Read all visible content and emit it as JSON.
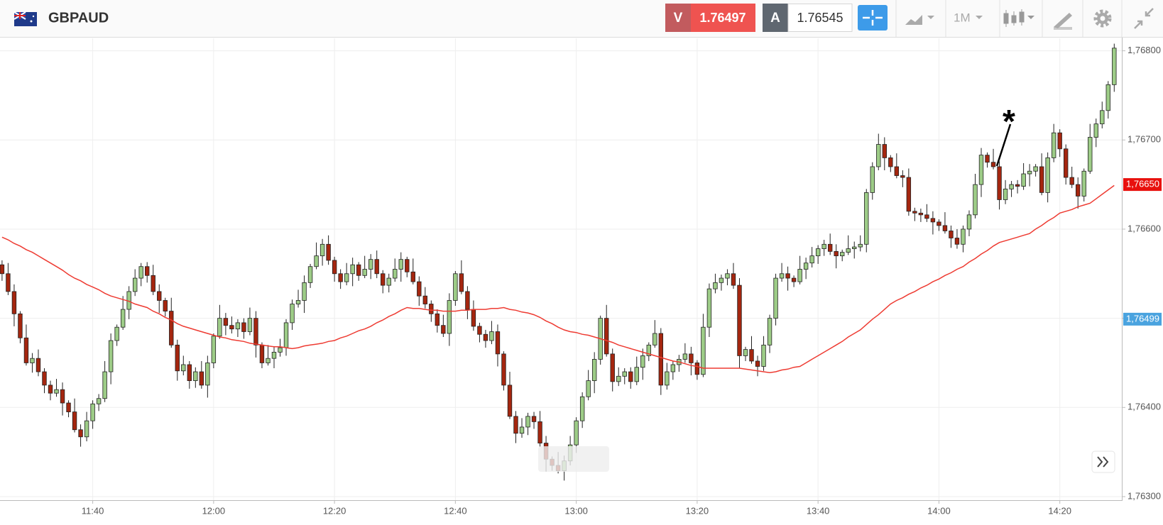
{
  "header": {
    "symbol": "GBPAUD",
    "sell_label": "V",
    "sell_price": "1.76497",
    "buy_label": "A",
    "buy_price": "1.76545",
    "timeframe": "1M"
  },
  "chart_data": {
    "type": "candlestick",
    "categories": [
      null,
      null,
      null,
      null,
      null,
      null,
      null,
      null,
      null,
      null,
      null,
      null,
      null,
      null,
      null,
      "11:40",
      null,
      null,
      null,
      null,
      null,
      null,
      null,
      null,
      null,
      null,
      null,
      null,
      null,
      null,
      null,
      null,
      null,
      null,
      null,
      "12:00",
      null,
      null,
      null,
      null,
      null,
      null,
      null,
      null,
      null,
      null,
      null,
      null,
      null,
      null,
      null,
      null,
      null,
      null,
      null,
      "12:20",
      null,
      null,
      null,
      null,
      null,
      null,
      null,
      null,
      null,
      null,
      null,
      null,
      null,
      null,
      null,
      null,
      null,
      null,
      null,
      "12:40",
      null,
      null,
      null,
      null,
      null,
      null,
      null,
      null,
      null,
      null,
      null,
      null,
      null,
      null,
      null,
      null,
      null,
      null,
      null,
      "13:00",
      null,
      null,
      null,
      null,
      null,
      null,
      null,
      null,
      null,
      null,
      null,
      null,
      null,
      null,
      null,
      null,
      null,
      null,
      null,
      "13:20",
      null,
      null,
      null,
      null,
      null,
      null,
      null,
      null,
      null,
      null,
      null,
      null,
      null,
      null,
      null,
      null,
      null,
      null,
      null,
      "13:40",
      null,
      null,
      null,
      null,
      null,
      null,
      null,
      null,
      null,
      null,
      null,
      null,
      null,
      null,
      null,
      null,
      null,
      null,
      null,
      "14:00",
      null,
      null,
      null,
      null,
      null,
      null,
      null,
      null,
      null,
      null,
      null,
      null,
      null,
      null,
      null,
      null,
      null,
      null,
      null,
      "14:20",
      null,
      null,
      null,
      null,
      null,
      null,
      null,
      null,
      null
    ],
    "open": [
      1.7656,
      1.7655,
      1.7653,
      1.76505,
      1.76478,
      1.7645,
      1.76455,
      1.7644,
      1.76425,
      1.76416,
      1.7642,
      1.76405,
      1.76395,
      1.76375,
      1.76367,
      1.76385,
      1.76404,
      1.7641,
      1.7644,
      1.76475,
      1.7649,
      1.7651,
      1.7653,
      1.76545,
      1.76558,
      1.76548,
      1.7653,
      1.7652,
      1.76508,
      1.7647,
      1.76441,
      1.76448,
      1.7643,
      1.7644,
      1.76425,
      1.7645,
      1.7648,
      1.765,
      1.76492,
      1.76488,
      1.76495,
      1.76485,
      1.765,
      1.7647,
      1.7645,
      1.76455,
      1.76462,
      1.76467,
      1.76495,
      1.76516,
      1.7652,
      1.7654,
      1.76558,
      1.7657,
      1.76583,
      1.76565,
      1.7655,
      1.76541,
      1.7655,
      1.7656,
      1.76548,
      1.76555,
      1.76566,
      1.7655,
      1.76537,
      1.76545,
      1.76555,
      1.76566,
      1.76552,
      1.76541,
      1.76525,
      1.76516,
      1.76505,
      1.76492,
      1.76483,
      1.7652,
      1.7655,
      1.7653,
      1.7651,
      1.76491,
      1.76482,
      1.76475,
      1.76485,
      1.7646,
      1.76425,
      1.7639,
      1.76371,
      1.76378,
      1.7639,
      1.76384,
      1.7636,
      1.76342,
      1.76335,
      1.76329,
      1.7634,
      1.76358,
      1.76385,
      1.76412,
      1.7643,
      1.76454,
      1.765,
      1.7646,
      1.76429,
      1.76435,
      1.7644,
      1.76429,
      1.76445,
      1.76458,
      1.7647,
      1.76483,
      1.76425,
      1.7644,
      1.76448,
      1.76454,
      1.7646,
      1.7645,
      1.76437,
      1.7649,
      1.76533,
      1.7654,
      1.76545,
      1.7655,
      1.76537,
      1.76458,
      1.76465,
      1.76452,
      1.76446,
      1.7647,
      1.765,
      1.76545,
      1.7655,
      1.76545,
      1.76541,
      1.76555,
      1.76562,
      1.7657,
      1.76578,
      1.76583,
      1.76575,
      1.7657,
      1.76574,
      1.76578,
      1.7658,
      1.76583,
      1.76641,
      1.7667,
      1.76695,
      1.7668,
      1.7667,
      1.7666,
      1.76658,
      1.7662,
      1.76618,
      1.76616,
      1.76612,
      1.76608,
      1.76604,
      1.76598,
      1.7659,
      1.76583,
      1.766,
      1.76616,
      1.7665,
      1.76683,
      1.76675,
      1.7667,
      1.76633,
      1.76645,
      1.7665,
      1.76648,
      1.76662,
      1.76665,
      1.7667,
      1.76641,
      1.7668,
      1.76708,
      1.7669,
      1.76658,
      1.7665,
      1.76637,
      1.76665,
      1.76703,
      1.76718,
      1.76733,
      1.76762
    ],
    "high": [
      1.76565,
      1.76562,
      1.76538,
      1.76508,
      1.76493,
      1.76461,
      1.76465,
      1.76444,
      1.7643,
      1.76432,
      1.76428,
      1.76408,
      1.7641,
      1.76381,
      1.76395,
      1.76408,
      1.76415,
      1.76452,
      1.76483,
      1.76493,
      1.76525,
      1.76536,
      1.76555,
      1.76562,
      1.76563,
      1.7656,
      1.76538,
      1.76523,
      1.76523,
      1.76476,
      1.76458,
      1.76452,
      1.76445,
      1.76452,
      1.76458,
      1.76483,
      1.76515,
      1.76506,
      1.76502,
      1.76499,
      1.765,
      1.76512,
      1.76508,
      1.76473,
      1.7647,
      1.76468,
      1.76477,
      1.76499,
      1.76521,
      1.76532,
      1.76548,
      1.76561,
      1.76585,
      1.76589,
      1.76593,
      1.76569,
      1.76555,
      1.76562,
      1.76568,
      1.76563,
      1.7657,
      1.76572,
      1.76576,
      1.76554,
      1.7655,
      1.76567,
      1.76574,
      1.76569,
      1.76567,
      1.76547,
      1.76535,
      1.7652,
      1.7651,
      1.76504,
      1.76528,
      1.76553,
      1.76565,
      1.76536,
      1.7652,
      1.76495,
      1.76487,
      1.76497,
      1.76493,
      1.76463,
      1.7644,
      1.76396,
      1.76388,
      1.76394,
      1.76395,
      1.76396,
      1.76368,
      1.76345,
      1.7635,
      1.76346,
      1.76368,
      1.76389,
      1.76417,
      1.76442,
      1.76462,
      1.76503,
      1.76515,
      1.76466,
      1.76445,
      1.76444,
      1.76445,
      1.76457,
      1.76466,
      1.76473,
      1.76498,
      1.76489,
      1.7645,
      1.76452,
      1.76459,
      1.76472,
      1.76468,
      1.76453,
      1.76505,
      1.76539,
      1.7655,
      1.76549,
      1.76555,
      1.76562,
      1.76545,
      1.76468,
      1.7648,
      1.76458,
      1.7648,
      1.76504,
      1.7655,
      1.76562,
      1.76558,
      1.76548,
      1.7657,
      1.76568,
      1.7658,
      1.76582,
      1.76588,
      1.76595,
      1.76583,
      1.76577,
      1.76593,
      1.76586,
      1.76593,
      1.76645,
      1.76675,
      1.76707,
      1.76703,
      1.76683,
      1.76685,
      1.76666,
      1.76668,
      1.76624,
      1.76623,
      1.76628,
      1.7662,
      1.76611,
      1.76619,
      1.76604,
      1.766,
      1.76604,
      1.76621,
      1.76662,
      1.76691,
      1.76686,
      1.7669,
      1.76676,
      1.76655,
      1.76654,
      1.76655,
      1.76674,
      1.76673,
      1.76673,
      1.76685,
      1.76686,
      1.76718,
      1.76712,
      1.76695,
      1.7667,
      1.76658,
      1.76668,
      1.76718,
      1.76724,
      1.76743,
      1.76766,
      1.76808
    ],
    "low": [
      1.76542,
      1.76526,
      1.76491,
      1.76472,
      1.76447,
      1.76439,
      1.76435,
      1.76416,
      1.76408,
      1.76412,
      1.76391,
      1.76389,
      1.76372,
      1.76356,
      1.76362,
      1.76376,
      1.76396,
      1.76406,
      1.76426,
      1.76469,
      1.76487,
      1.76499,
      1.76525,
      1.76536,
      1.7654,
      1.76526,
      1.76506,
      1.76502,
      1.76467,
      1.7643,
      1.76436,
      1.76421,
      1.76422,
      1.76421,
      1.76411,
      1.76444,
      1.76477,
      1.76481,
      1.76483,
      1.76479,
      1.76477,
      1.76481,
      1.76456,
      1.76444,
      1.76447,
      1.76444,
      1.76457,
      1.76458,
      1.76487,
      1.76512,
      1.76506,
      1.76534,
      1.76555,
      1.76559,
      1.7656,
      1.76541,
      1.76533,
      1.76537,
      1.76536,
      1.76542,
      1.76545,
      1.76544,
      1.76545,
      1.76528,
      1.76529,
      1.76541,
      1.76541,
      1.76546,
      1.76538,
      1.76514,
      1.76511,
      1.76496,
      1.76484,
      1.76479,
      1.76469,
      1.76514,
      1.76527,
      1.76499,
      1.76486,
      1.76473,
      1.76467,
      1.76471,
      1.76446,
      1.76419,
      1.76387,
      1.7636,
      1.76366,
      1.76369,
      1.76376,
      1.76356,
      1.76328,
      1.76329,
      1.76326,
      1.76318,
      1.76335,
      1.76349,
      1.76377,
      1.76408,
      1.76416,
      1.76448,
      1.76457,
      1.76418,
      1.76424,
      1.76426,
      1.76421,
      1.76425,
      1.76431,
      1.76452,
      1.76467,
      1.76414,
      1.7642,
      1.76431,
      1.7644,
      1.7645,
      1.76436,
      1.76431,
      1.76434,
      1.76479,
      1.76528,
      1.76531,
      1.76537,
      1.76533,
      1.76444,
      1.76452,
      1.76449,
      1.76435,
      1.76441,
      1.76461,
      1.76492,
      1.76541,
      1.76531,
      1.76535,
      1.76538,
      1.76544,
      1.76557,
      1.76561,
      1.7657,
      1.76571,
      1.76556,
      1.76564,
      1.76571,
      1.76567,
      1.76575,
      1.76574,
      1.76633,
      1.76666,
      1.76666,
      1.76664,
      1.76657,
      1.76647,
      1.76615,
      1.76609,
      1.76608,
      1.76608,
      1.76594,
      1.76598,
      1.76595,
      1.76579,
      1.76578,
      1.76574,
      1.76592,
      1.76612,
      1.76636,
      1.76669,
      1.76667,
      1.76622,
      1.76628,
      1.76636,
      1.7664,
      1.76644,
      1.76648,
      1.76659,
      1.76638,
      1.7663,
      1.76675,
      1.76681,
      1.7665,
      1.76646,
      1.76623,
      1.76631,
      1.76662,
      1.76692,
      1.76713,
      1.76724,
      1.76754
    ],
    "close": [
      1.7655,
      1.7653,
      1.76505,
      1.76478,
      1.7645,
      1.76455,
      1.7644,
      1.76425,
      1.76416,
      1.7642,
      1.76405,
      1.76395,
      1.76375,
      1.76367,
      1.76385,
      1.76404,
      1.7641,
      1.7644,
      1.76475,
      1.7649,
      1.7651,
      1.7653,
      1.76545,
      1.76558,
      1.76548,
      1.7653,
      1.7652,
      1.76508,
      1.7647,
      1.76441,
      1.76448,
      1.7643,
      1.7644,
      1.76425,
      1.7645,
      1.7648,
      1.765,
      1.76492,
      1.76488,
      1.76495,
      1.76485,
      1.765,
      1.7647,
      1.7645,
      1.76455,
      1.76462,
      1.76467,
      1.76495,
      1.76516,
      1.7652,
      1.7654,
      1.76558,
      1.7657,
      1.76583,
      1.76565,
      1.7655,
      1.76541,
      1.7655,
      1.7656,
      1.76548,
      1.76555,
      1.76566,
      1.7655,
      1.76537,
      1.76545,
      1.76555,
      1.76566,
      1.76552,
      1.76541,
      1.76525,
      1.76516,
      1.76505,
      1.76492,
      1.76483,
      1.7652,
      1.7655,
      1.7653,
      1.7651,
      1.76491,
      1.76482,
      1.76475,
      1.76485,
      1.7646,
      1.76425,
      1.7639,
      1.76371,
      1.76378,
      1.7639,
      1.76384,
      1.7636,
      1.76342,
      1.76335,
      1.76329,
      1.7634,
      1.76358,
      1.76385,
      1.76412,
      1.7643,
      1.76454,
      1.765,
      1.7646,
      1.76429,
      1.76435,
      1.7644,
      1.76429,
      1.76445,
      1.76458,
      1.7647,
      1.76483,
      1.76425,
      1.7644,
      1.76448,
      1.76454,
      1.7646,
      1.7645,
      1.76437,
      1.7649,
      1.76533,
      1.7654,
      1.76545,
      1.7655,
      1.76537,
      1.76458,
      1.76465,
      1.76452,
      1.76446,
      1.7647,
      1.765,
      1.76545,
      1.7655,
      1.76545,
      1.76541,
      1.76555,
      1.76562,
      1.7657,
      1.76578,
      1.76583,
      1.76575,
      1.7657,
      1.76574,
      1.76578,
      1.7658,
      1.76583,
      1.76641,
      1.7667,
      1.76695,
      1.7668,
      1.7667,
      1.7666,
      1.76658,
      1.7662,
      1.76618,
      1.76616,
      1.76612,
      1.76608,
      1.76604,
      1.76598,
      1.7659,
      1.76583,
      1.766,
      1.76616,
      1.7665,
      1.76683,
      1.76675,
      1.7667,
      1.76633,
      1.76645,
      1.7665,
      1.76648,
      1.76662,
      1.76665,
      1.7667,
      1.76641,
      1.7668,
      1.76708,
      1.7669,
      1.76658,
      1.7665,
      1.76637,
      1.76665,
      1.76703,
      1.76718,
      1.76733,
      1.76762,
      1.76803
    ],
    "ma": {
      "color": "#ee3b32",
      "values": [
        1.76591,
        1.76588,
        1.76584,
        1.76581,
        1.76577,
        1.76574,
        1.7657,
        1.76566,
        1.76562,
        1.76558,
        1.76554,
        1.76549,
        1.76545,
        1.76542,
        1.76538,
        1.76535,
        1.76532,
        1.76528,
        1.76525,
        1.76523,
        1.76521,
        1.76519,
        1.76516,
        1.76514,
        1.76512,
        1.76508,
        1.76505,
        1.76501,
        1.76498,
        1.76494,
        1.76491,
        1.76489,
        1.76487,
        1.76485,
        1.76483,
        1.76481,
        1.76479,
        1.76478,
        1.76476,
        1.76475,
        1.76474,
        1.76472,
        1.76471,
        1.7647,
        1.76469,
        1.76468,
        1.76468,
        1.76467,
        1.76466,
        1.76467,
        1.76469,
        1.7647,
        1.76471,
        1.76472,
        1.76474,
        1.76475,
        1.76478,
        1.7648,
        1.76483,
        1.76486,
        1.76488,
        1.76491,
        1.76495,
        1.76498,
        1.76502,
        1.76505,
        1.76509,
        1.76512,
        1.76511,
        1.76511,
        1.7651,
        1.76509,
        1.76509,
        1.76508,
        1.76508,
        1.76508,
        1.76509,
        1.76509,
        1.7651,
        1.7651,
        1.7651,
        1.76511,
        1.76511,
        1.76512,
        1.7651,
        1.76509,
        1.76507,
        1.76506,
        1.76504,
        1.76501,
        1.76497,
        1.76494,
        1.7649,
        1.76487,
        1.76485,
        1.76484,
        1.76482,
        1.76481,
        1.76479,
        1.76477,
        1.76475,
        1.76473,
        1.7647,
        1.76468,
        1.76466,
        1.76464,
        1.76462,
        1.7646,
        1.76458,
        1.76456,
        1.76454,
        1.76452,
        1.76451,
        1.76449,
        1.76447,
        1.76446,
        1.76444,
        1.76444,
        1.76444,
        1.76444,
        1.76444,
        1.76444,
        1.76444,
        1.76443,
        1.76442,
        1.76441,
        1.7644,
        1.76439,
        1.7644,
        1.76442,
        1.76443,
        1.76445,
        1.76446,
        1.7645,
        1.76454,
        1.76458,
        1.76462,
        1.76466,
        1.7647,
        1.76474,
        1.76479,
        1.76483,
        1.76487,
        1.76493,
        1.76499,
        1.76504,
        1.7651,
        1.76516,
        1.7652,
        1.76523,
        1.76527,
        1.7653,
        1.76534,
        1.76537,
        1.76541,
        1.76544,
        1.76548,
        1.76551,
        1.76555,
        1.76558,
        1.76563,
        1.76567,
        1.76572,
        1.76576,
        1.76581,
        1.76585,
        1.76587,
        1.76589,
        1.76591,
        1.76593,
        1.76595,
        1.766,
        1.76604,
        1.76609,
        1.76613,
        1.76618,
        1.7662,
        1.76622,
        1.76625,
        1.76627,
        1.76629,
        1.76634,
        1.76639,
        1.76644,
        1.76649
      ]
    },
    "up_color": "#9dcc87",
    "down_color": "#a5260f",
    "ylim": [
      1.76296,
      1.76814
    ],
    "yticks": [
      {
        "value": 1.763,
        "label": "1,76300"
      },
      {
        "value": 1.764,
        "label": "1,76400"
      },
      {
        "value": 1.765,
        "label": "1,76500"
      },
      {
        "value": 1.766,
        "label": "1,76600"
      },
      {
        "value": 1.767,
        "label": "1,76700"
      },
      {
        "value": 1.768,
        "label": "1,76800"
      }
    ],
    "grid": true,
    "price_markers": [
      {
        "value": 1.7665,
        "label": "1,76650",
        "color": "#e8100d"
      },
      {
        "value": 1.76499,
        "label": "1,76499",
        "color": "#4aa3df"
      }
    ],
    "annotation": "*"
  }
}
